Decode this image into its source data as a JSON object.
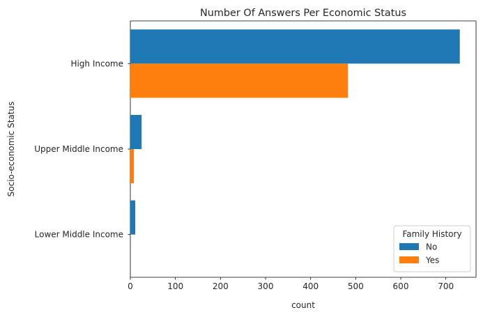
{
  "chart_data": {
    "type": "bar",
    "orientation": "horizontal",
    "title": "Number Of Answers Per Economic Status",
    "xlabel": "count",
    "ylabel": "Socio-economic Status",
    "categories": [
      "High Income",
      "Upper Middle Income",
      "Lower Middle Income"
    ],
    "series": [
      {
        "name": "No",
        "color": "#1f77b4",
        "values": [
          731,
          25,
          11
        ]
      },
      {
        "name": "Yes",
        "color": "#ff7f0e",
        "values": [
          483,
          8,
          0
        ]
      }
    ],
    "xlim": [
      0,
      767
    ],
    "xticks": [
      0,
      100,
      200,
      300,
      400,
      500,
      600,
      700
    ],
    "xtick_labels": [
      "0",
      "100",
      "200",
      "300",
      "400",
      "500",
      "600",
      "700"
    ],
    "grid": false,
    "legend": {
      "title": "Family History",
      "position": "lower right"
    }
  }
}
